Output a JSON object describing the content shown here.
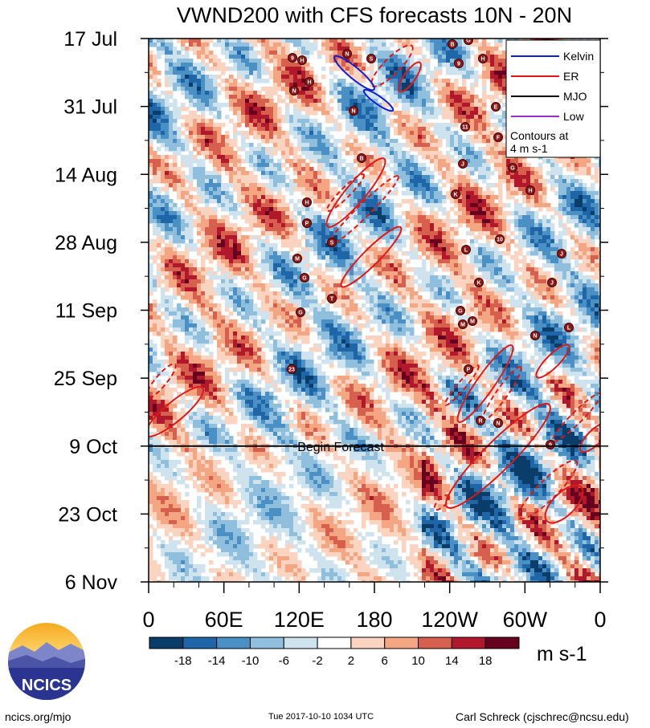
{
  "chart_data": {
    "type": "heatmap",
    "title": "VWND200 with CFS forecasts  10N - 20N",
    "y_ticks": [
      "17 Jul",
      "31 Jul",
      "14 Aug",
      "28 Aug",
      "11 Sep",
      "25 Sep",
      "9 Oct",
      "23 Oct",
      "6 Nov"
    ],
    "x_ticks": [
      "0",
      "60E",
      "120E",
      "180",
      "120W",
      "60W",
      "0"
    ],
    "x_range_deg_east": [
      0,
      360
    ],
    "y_range": [
      "2017-07-17",
      "2017-11-06"
    ],
    "forecast_line": {
      "date": "2017-10-09",
      "label": "Begin Forecast"
    },
    "colorbar": {
      "units": "m s-1",
      "tick_labels": [
        "-18",
        "-14",
        "-10",
        "-6",
        "-2",
        "2",
        "6",
        "10",
        "14",
        "18"
      ],
      "colors": [
        "#0b3d6b",
        "#1f66a8",
        "#4a90c4",
        "#8fbfdc",
        "#cfe3ef",
        "#ffffff",
        "#fad4c0",
        "#f4a582",
        "#d6604d",
        "#b2182b",
        "#67001f"
      ]
    },
    "legend": {
      "position": "top-right",
      "entries": [
        {
          "name": "Kelvin",
          "color": "#1020d0"
        },
        {
          "name": "ER",
          "color": "#e01818"
        },
        {
          "name": "MJO",
          "color": "#000000"
        },
        {
          "name": "Low",
          "color": "#9a30c8"
        }
      ],
      "note_lines": [
        "Contours at",
        "4 m s-1"
      ]
    },
    "storm_labels": [
      "9",
      "H",
      "N",
      "S",
      "H",
      "N",
      "N",
      "B",
      "H",
      "P",
      "S",
      "M",
      "G",
      "T",
      "G",
      "23",
      "B",
      "G",
      "9",
      "H",
      "E",
      "11",
      "F",
      "J",
      "G",
      "K",
      "H",
      "10",
      "L",
      "J",
      "K",
      "J",
      "G",
      "M",
      "N",
      "M",
      "L",
      "P",
      "R",
      "N",
      "9"
    ]
  },
  "footer": {
    "logo_text": "NCICS",
    "left": "ncics.org/mjo",
    "center": "Tue 2017-10-10 1034 UTC",
    "right": "Carl Schreck (cjschrec@ncsu.edu)"
  }
}
